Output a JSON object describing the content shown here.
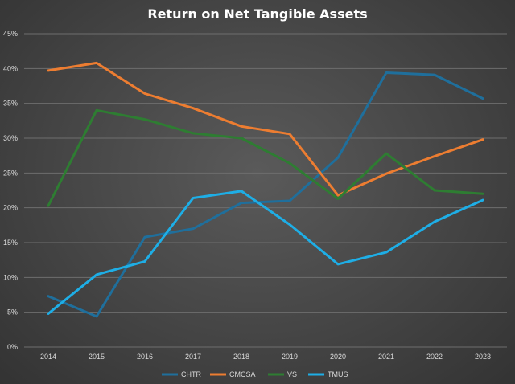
{
  "chart_data": {
    "type": "line",
    "title": "Return on Net Tangible Assets",
    "xlabel": "",
    "ylabel": "",
    "x": [
      "2014",
      "2015",
      "2016",
      "2017",
      "2018",
      "2019",
      "2020",
      "2021",
      "2022",
      "2023"
    ],
    "ylim": [
      0,
      45
    ],
    "yticks": [
      "0%",
      "5%",
      "10%",
      "15%",
      "20%",
      "25%",
      "30%",
      "35%",
      "40%",
      "45%"
    ],
    "grid": true,
    "legend_position": "bottom",
    "series": [
      {
        "name": "CHTR",
        "color": "#1f6f9c",
        "values": [
          7.3,
          4.4,
          15.8,
          17.0,
          20.7,
          21.0,
          27.2,
          39.4,
          39.1,
          35.7
        ]
      },
      {
        "name": "CMCSA",
        "color": "#ed7d31",
        "values": [
          39.7,
          40.8,
          36.4,
          34.3,
          31.7,
          30.6,
          21.8,
          24.9,
          27.4,
          29.8
        ]
      },
      {
        "name": "VS",
        "color": "#2e7d32",
        "values": [
          20.3,
          34.0,
          32.7,
          30.7,
          30.0,
          26.4,
          21.3,
          27.8,
          22.5,
          22.0
        ]
      },
      {
        "name": "TMUS",
        "color": "#1eaee6",
        "values": [
          4.8,
          10.4,
          12.3,
          21.4,
          22.4,
          17.6,
          11.9,
          13.6,
          18.0,
          21.1
        ]
      }
    ]
  }
}
